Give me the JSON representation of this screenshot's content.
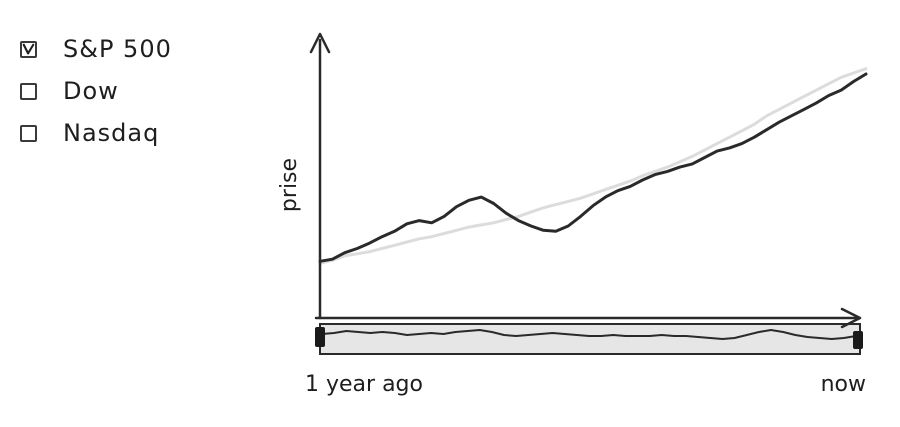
{
  "legend": {
    "items": [
      {
        "label": "S&P 500",
        "checked": true
      },
      {
        "label": "Dow",
        "checked": false
      },
      {
        "label": "Nasdaq",
        "checked": false
      }
    ]
  },
  "chart": {
    "ylabel": "prise",
    "range_start_label": "1 year ago",
    "range_end_label": "now"
  },
  "chart_data": {
    "type": "line",
    "xlabel": "",
    "ylabel": "prise",
    "x_tick_labels": [
      "1 year ago",
      "now"
    ],
    "grid": false,
    "series": [
      {
        "color": "#2a2a2a",
        "values": [
          10,
          12,
          18,
          22,
          27,
          33,
          38,
          45,
          48,
          46,
          52,
          61,
          67,
          70,
          64,
          55,
          48,
          43,
          39,
          38,
          43,
          52,
          62,
          70,
          76,
          80,
          86,
          91,
          94,
          98,
          101,
          107,
          113,
          116,
          120,
          126,
          133,
          140,
          146,
          152,
          158,
          165,
          170,
          178,
          185
        ]
      },
      {
        "color": "#dcdcdc",
        "values": [
          8,
          11,
          15,
          17,
          19,
          22,
          25,
          28,
          31,
          33,
          36,
          39,
          42,
          44,
          46,
          49,
          52,
          56,
          60,
          63,
          66,
          69,
          73,
          77,
          81,
          85,
          90,
          94,
          98,
          103,
          108,
          114,
          120,
          126,
          132,
          138,
          146,
          152,
          158,
          164,
          170,
          176,
          182,
          186,
          190
        ]
      }
    ],
    "overview_values": [
      12,
      13,
      15,
      14,
      13,
      14,
      13,
      11,
      12,
      13,
      12,
      14,
      15,
      16,
      14,
      11,
      10,
      11,
      12,
      13,
      12,
      11,
      10,
      10,
      11,
      10,
      10,
      10,
      11,
      10,
      10,
      9,
      8,
      7,
      8,
      11,
      14,
      16,
      14,
      11,
      9,
      8,
      7,
      8,
      10
    ],
    "ylim": [
      0,
      200
    ]
  },
  "colors": {
    "axis": "#2a2a2a",
    "navigator_fill": "#e6e6e6",
    "handle": "#1a1a1a"
  }
}
